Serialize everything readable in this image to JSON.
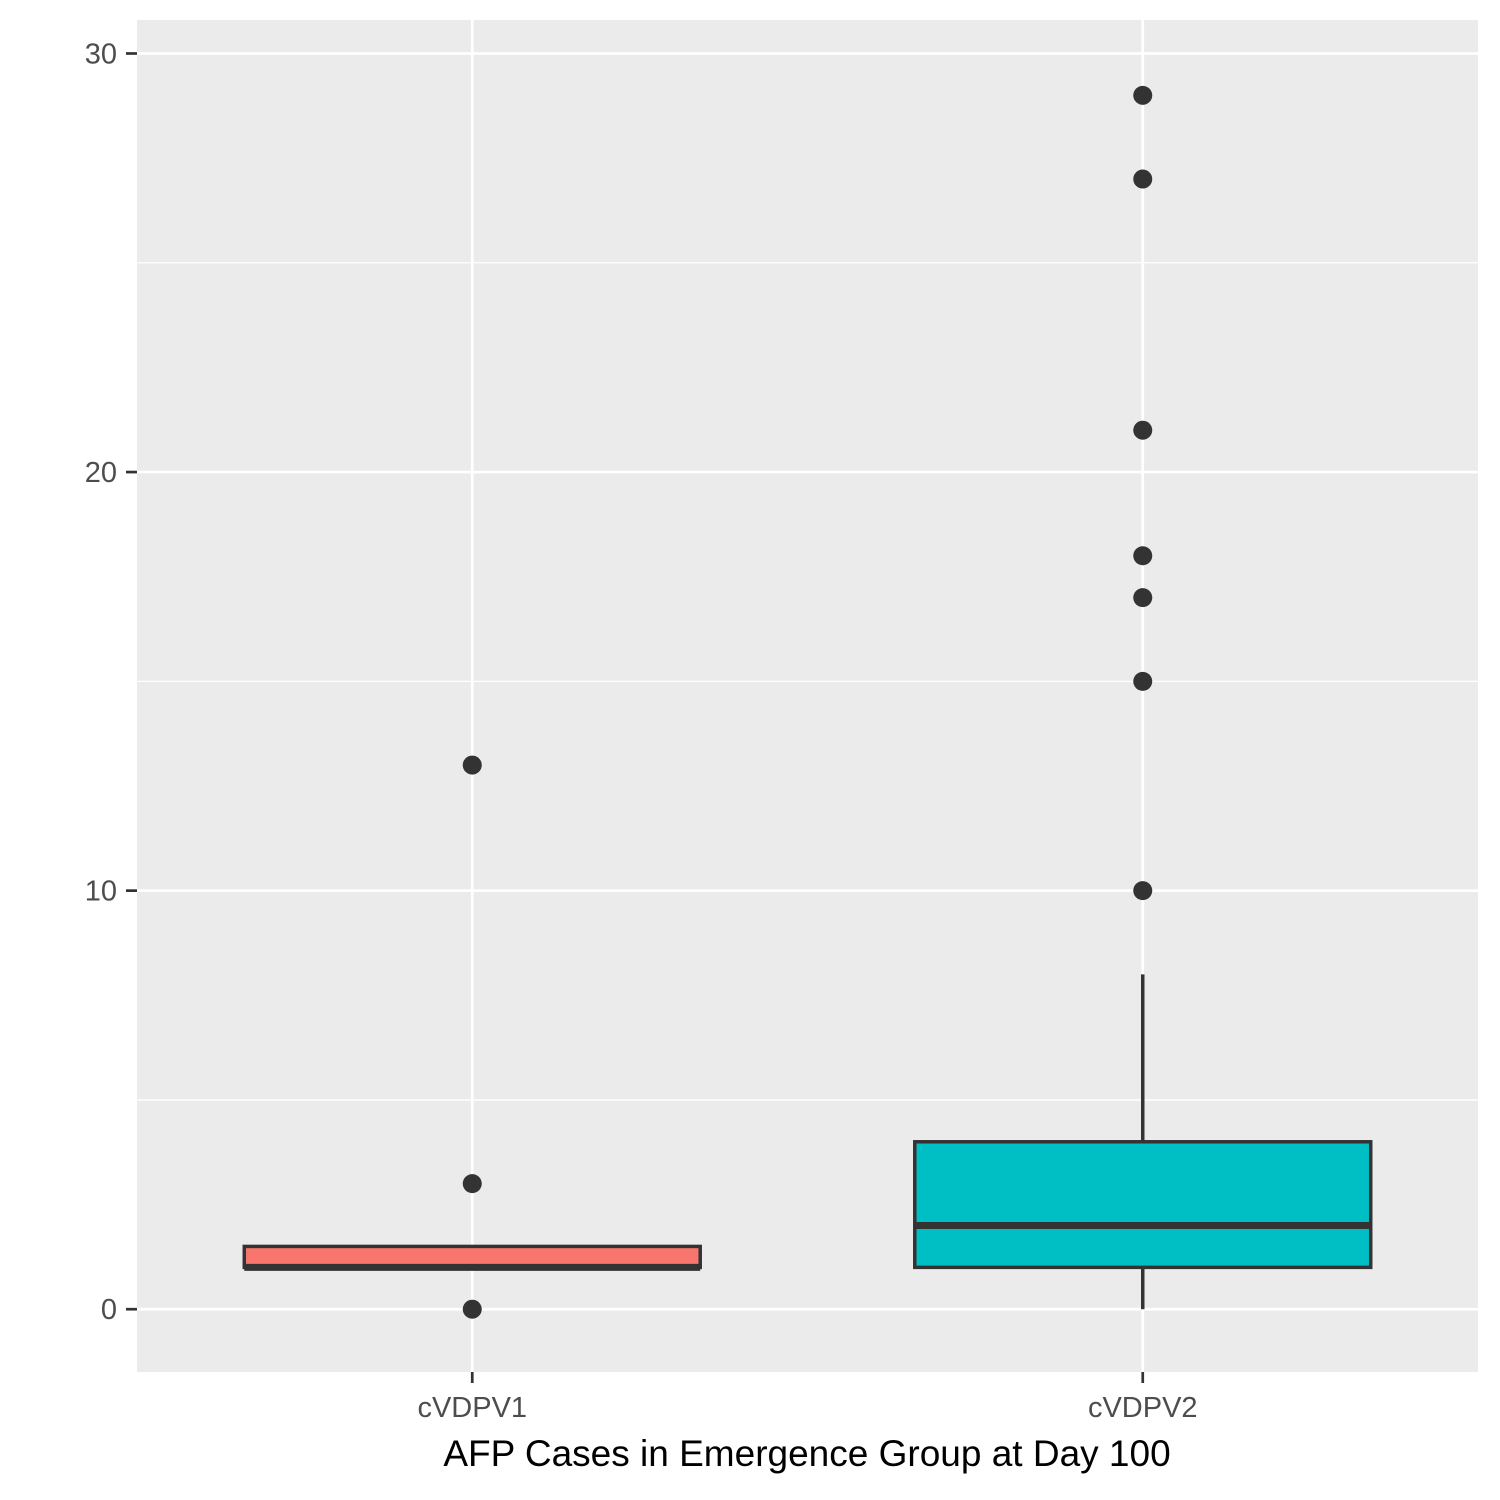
{
  "chart_data": {
    "type": "boxplot",
    "title": "",
    "xlabel": "AFP Cases in Emergence Group at Day 100",
    "ylabel": "",
    "ylim": [
      -1.5,
      30.8
    ],
    "yticks": [
      0,
      10,
      20,
      30
    ],
    "y_minor_ticks": [
      5,
      15,
      25
    ],
    "grid": true,
    "legend": "none",
    "categories": [
      "cVDPV1",
      "cVDPV2"
    ],
    "series": [
      {
        "category": "cVDPV1",
        "whisker_low": 1,
        "q1": 1,
        "median": 1,
        "q3": 1.5,
        "whisker_high": 1.5,
        "outliers": [
          13,
          3,
          0
        ],
        "fill": "#F8766D"
      },
      {
        "category": "cVDPV2",
        "whisker_low": 0,
        "q1": 1,
        "median": 2,
        "q3": 4,
        "whisker_high": 8,
        "outliers": [
          29,
          27,
          21,
          18,
          17,
          15,
          10
        ],
        "fill": "#00BFC4"
      }
    ],
    "colors": {
      "panel_background": "#EBEBEB",
      "grid_line": "#FFFFFF",
      "box_outline": "#333333",
      "tick_mark": "#333333"
    }
  }
}
